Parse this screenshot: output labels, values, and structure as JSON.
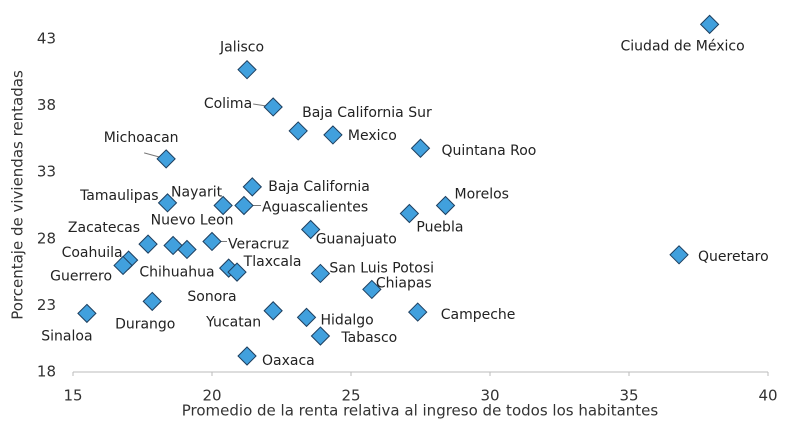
{
  "chart_data": {
    "type": "scatter",
    "x_label": "Promedio de la renta relativa al ingreso de todos los habitantes",
    "y_label": "Porcentaje de viviendas rentadas",
    "color": "#41a0dd",
    "xlim": [
      15,
      40
    ],
    "xticks": [
      15,
      20,
      25,
      30,
      35,
      40
    ],
    "ylim": [
      18,
      45
    ],
    "yticks": [
      18,
      23,
      28,
      33,
      38,
      43
    ],
    "labels": [
      "Ciudad de México",
      "Jalisco",
      "Colima",
      "Baja California Sur",
      "Mexico",
      "Quintana Roo",
      "Michoacan",
      "Baja California",
      "Nayarit",
      "Aguascalientes",
      "Tamaulipas",
      "Morelos",
      "Puebla",
      "Guanajuato",
      "Veracruz",
      "Zacatecas",
      "Nuevo Leon",
      "Chihuahua",
      "Queretaro",
      "Coahuila",
      "Guerrero",
      "Tlaxcala",
      "Sonora",
      "San Luis Potosi",
      "Chiapas",
      "Durango",
      "Sinaloa",
      "Campeche",
      "Yucatan",
      "Hidalgo",
      "Tabasco",
      "Oaxaca"
    ],
    "x": [
      37.9,
      21.26,
      22.2,
      23.1,
      24.35,
      27.5,
      18.35,
      21.45,
      20.4,
      21.15,
      18.4,
      28.4,
      27.1,
      23.55,
      20.0,
      17.7,
      18.6,
      19.1,
      36.8,
      17.0,
      16.8,
      20.6,
      20.9,
      23.9,
      25.75,
      17.85,
      15.5,
      27.4,
      22.2,
      23.4,
      23.9,
      21.26
    ],
    "y": [
      44.1,
      40.7,
      37.9,
      36.1,
      35.8,
      34.8,
      34.0,
      31.9,
      30.5,
      30.5,
      30.7,
      30.5,
      29.9,
      28.7,
      27.8,
      27.6,
      27.5,
      27.2,
      26.8,
      26.4,
      26.0,
      25.8,
      25.5,
      25.4,
      24.2,
      23.3,
      22.4,
      22.5,
      22.6,
      22.1,
      20.7,
      19.2
    ]
  }
}
